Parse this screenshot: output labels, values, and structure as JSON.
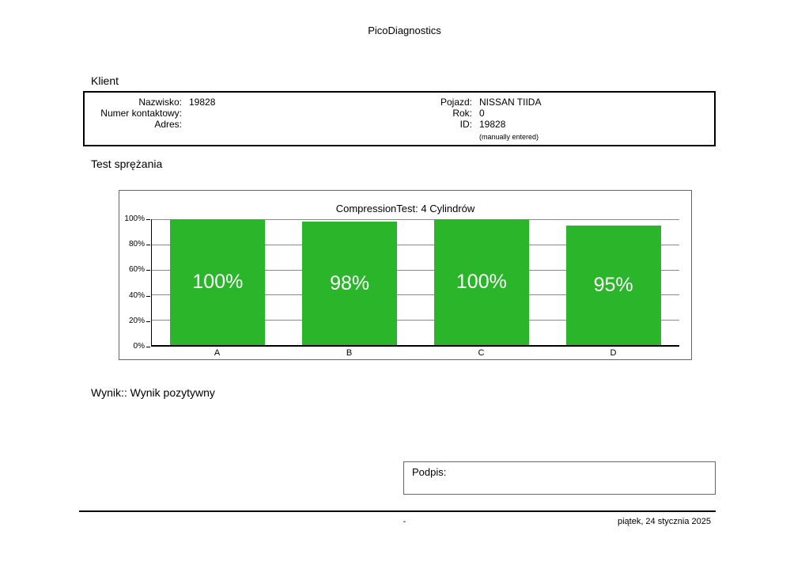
{
  "page": {
    "title": "PicoDiagnostics",
    "footer_center": "-",
    "footer_date": "piątek, 24 stycznia 2025"
  },
  "client": {
    "section_title": "Klient",
    "left_fields": [
      {
        "label": "Nazwisko:",
        "value": "19828"
      },
      {
        "label": "Numer kontaktowy:",
        "value": ""
      },
      {
        "label": "Adres:",
        "value": ""
      }
    ],
    "right_fields": [
      {
        "label": "Pojazd:",
        "value": "NISSAN TIIDA"
      },
      {
        "label": "Rok:",
        "value": "0"
      },
      {
        "label": "ID:",
        "value": "19828"
      }
    ],
    "note": "(manually entered)"
  },
  "compression": {
    "section_title": "Test sprężania",
    "result": "Wynik:: Wynik pozytywny"
  },
  "signature": {
    "label": "Podpis:"
  },
  "chart_data": {
    "type": "bar",
    "title": "CompressionTest: 4 Cylindrów",
    "categories": [
      "A",
      "B",
      "C",
      "D"
    ],
    "values": [
      100,
      98,
      100,
      95
    ],
    "value_labels": [
      "100%",
      "98%",
      "100%",
      "95%"
    ],
    "xlabel": "",
    "ylabel": "",
    "ylim": [
      0,
      100
    ],
    "y_ticks": [
      "100%",
      "80%",
      "60%",
      "40%",
      "20%",
      "0%"
    ],
    "grid": true,
    "legend_position": "none",
    "bar_color": "#2bb52b"
  }
}
